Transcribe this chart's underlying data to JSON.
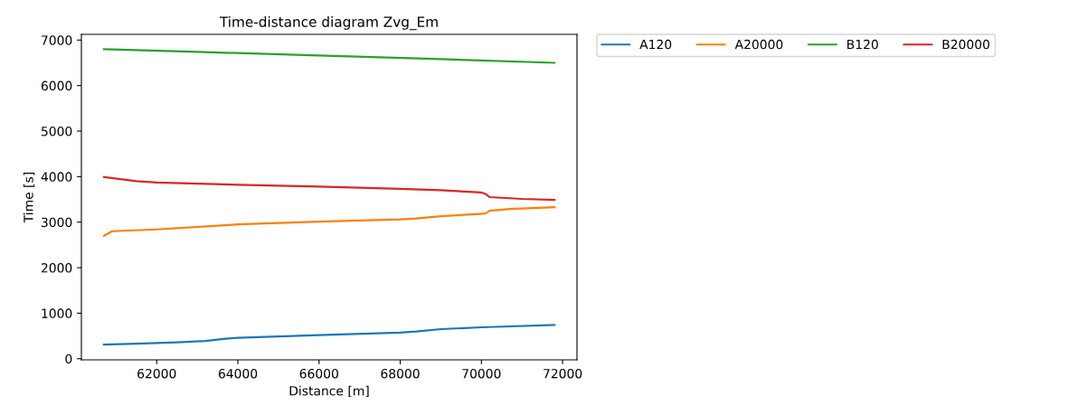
{
  "chart_data": {
    "type": "line",
    "title": "Time-distance diagram Zvg_Em",
    "xlabel": "Distance [m]",
    "ylabel": "Time [s]",
    "xlim": [
      60145,
      72355
    ],
    "xticks": [
      62000,
      64000,
      66000,
      68000,
      70000,
      72000
    ],
    "ylim": [
      -25,
      7125
    ],
    "yticks": [
      0,
      1000,
      2000,
      3000,
      4000,
      5000,
      6000,
      7000
    ],
    "legend": "top right",
    "grid": false,
    "series": [
      {
        "name": "A120",
        "color": "#1f77b4",
        "x": [
          60700,
          61500,
          62500,
          63200,
          63700,
          64000,
          66000,
          68000,
          68400,
          69000,
          70000,
          71800
        ],
        "values": [
          310,
          330,
          360,
          390,
          440,
          460,
          520,
          575,
          600,
          650,
          690,
          740
        ]
      },
      {
        "name": "A20000",
        "color": "#ff7f0e",
        "x": [
          60700,
          60900,
          62000,
          63500,
          64000,
          66000,
          68000,
          68400,
          69000,
          70100,
          70200,
          70700,
          71800
        ],
        "values": [
          2700,
          2800,
          2840,
          2920,
          2950,
          3010,
          3060,
          3080,
          3130,
          3190,
          3250,
          3290,
          3330
        ]
      },
      {
        "name": "B120",
        "color": "#2ca02c",
        "x": [
          60700,
          63000,
          66000,
          69000,
          71800
        ],
        "values": [
          6800,
          6740,
          6660,
          6580,
          6500
        ]
      },
      {
        "name": "B20000",
        "color": "#d62728",
        "x": [
          60700,
          61500,
          62000,
          64000,
          66000,
          68000,
          69000,
          70000,
          70100,
          70200,
          71000,
          71800
        ],
        "values": [
          3990,
          3900,
          3870,
          3820,
          3780,
          3730,
          3700,
          3650,
          3620,
          3550,
          3510,
          3490
        ]
      }
    ]
  }
}
